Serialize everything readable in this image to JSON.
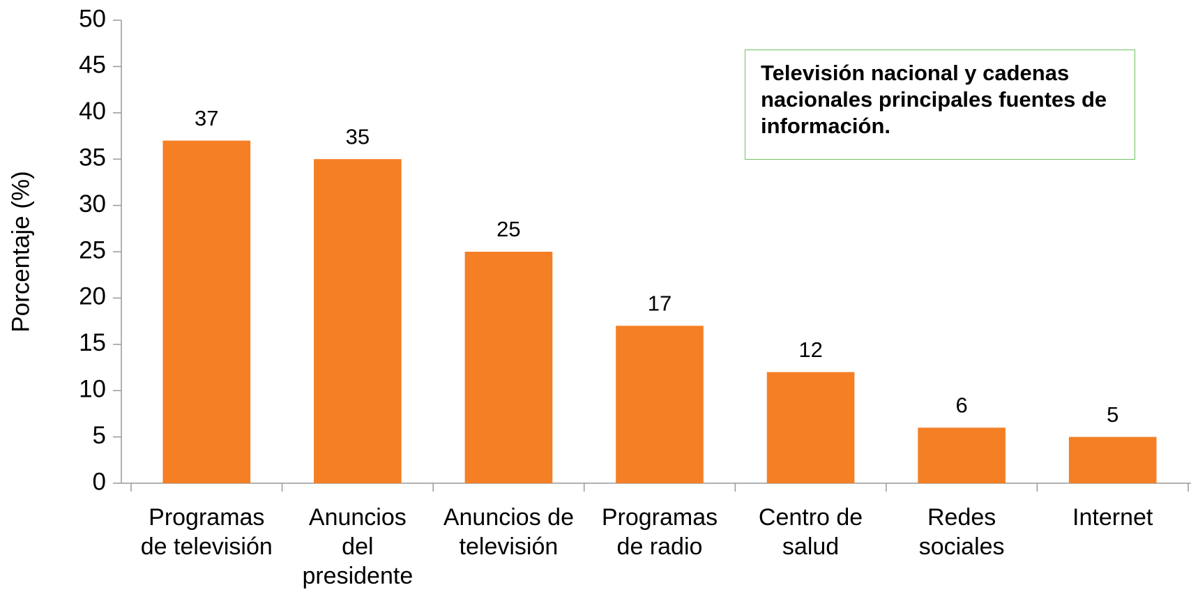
{
  "chart_data": {
    "type": "bar",
    "categories": [
      "Programas\nde televisión",
      "Anuncios\ndel\npresidente",
      "Anuncios de\ntelevisión",
      "Programas\nde radio",
      "Centro de\nsalud",
      "Redes\nsociales",
      "Internet"
    ],
    "values": [
      37,
      35,
      25,
      17,
      12,
      6,
      5
    ],
    "color": "#f47f24",
    "ylabel": "Porcentaje (%)",
    "annotation": "Televisión nacional y cadenas nacionales principales fuentes de información.",
    "ylim": [
      0,
      50
    ],
    "yticks": [
      0,
      5,
      10,
      15,
      20,
      25,
      30,
      35,
      40,
      45,
      50
    ],
    "grid": false
  }
}
